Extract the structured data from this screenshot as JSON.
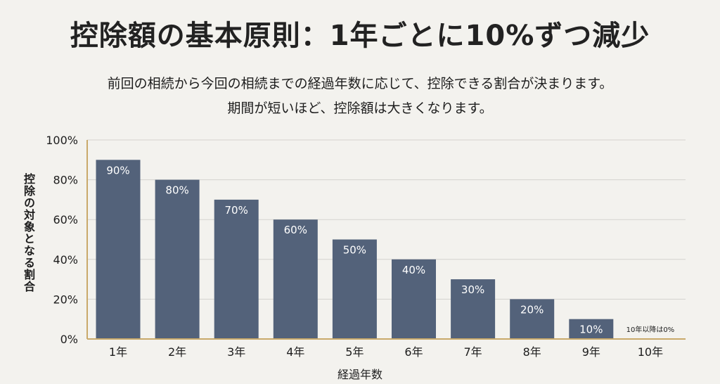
{
  "chart_data": {
    "type": "bar",
    "title": "控除額の基本原則：1年ごとに10%ずつ減少",
    "subtitle_lines": [
      "前回の相続から今回の相続までの経過年数に応じて、控除できる割合が決まります。",
      "期間が短いほど、控除額は大きくなります。"
    ],
    "ylabel": "控除の対象となる割合",
    "xlabel": "経過年数",
    "categories": [
      "1年",
      "2年",
      "3年",
      "4年",
      "5年",
      "6年",
      "7年",
      "8年",
      "9年",
      "10年"
    ],
    "values": [
      90,
      80,
      70,
      60,
      50,
      40,
      30,
      20,
      10,
      0
    ],
    "data_labels": [
      "90%",
      "80%",
      "70%",
      "60%",
      "50%",
      "40%",
      "30%",
      "20%",
      "10%",
      "10年以降は0%"
    ],
    "yticks": [
      "0%",
      "20%",
      "40%",
      "60%",
      "80%",
      "100%"
    ],
    "ytick_values": [
      0,
      20,
      40,
      60,
      80,
      100
    ],
    "ylim": [
      0,
      100
    ],
    "grid": true,
    "colors": {
      "bar": "#53627a",
      "bar_label": "#ffffff",
      "axis": "#c9a96a",
      "grid": "#d4d3cf"
    }
  }
}
